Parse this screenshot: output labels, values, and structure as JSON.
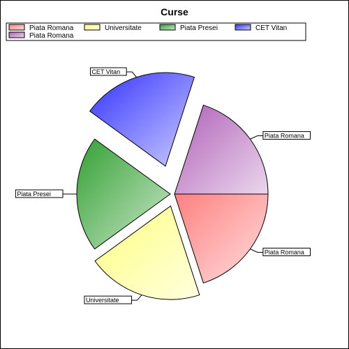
{
  "chart_data": {
    "type": "pie",
    "title": "Curse",
    "exploded": true,
    "legend_position": "top",
    "slices": [
      {
        "label": "Piata Romana",
        "value": 20,
        "color": "#ff8080"
      },
      {
        "label": "Universitate",
        "value": 20,
        "color": "#ffff80"
      },
      {
        "label": "Piata Presei",
        "value": 20,
        "color": "#33a033"
      },
      {
        "label": "CET Vitan",
        "value": 20,
        "color": "#3333ff"
      },
      {
        "label": "Piata Romana",
        "value": 20,
        "color": "#b060b8"
      }
    ]
  }
}
